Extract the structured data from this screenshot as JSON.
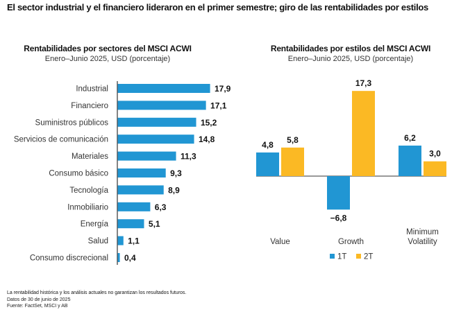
{
  "title": "El sector industrial y el financiero lideraron en el primer semestre; giro de las rentabilidades por estilos",
  "colors": {
    "bar_blue": "#2196d3",
    "bar_yellow": "#fbb924",
    "axis": "#333333"
  },
  "chart_data": [
    {
      "type": "bar",
      "orientation": "horizontal",
      "title": "Rentabilidades por sectores del MSCI ACWI",
      "subtitle": "Enero–Junio 2025, USD (porcentaje)",
      "categories": [
        "Industrial",
        "Financiero",
        "Suministros públicos",
        "Servicios de comunicación",
        "Materiales",
        "Consumo básico",
        "Tecnología",
        "Inmobiliario",
        "Energía",
        "Salud",
        "Consumo discrecional"
      ],
      "values": [
        17.9,
        17.1,
        15.2,
        14.8,
        11.3,
        9.3,
        8.9,
        6.3,
        5.1,
        1.1,
        0.4
      ],
      "labels": [
        "17,9",
        "17,1",
        "15,2",
        "14,8",
        "11,3",
        "9,3",
        "8,9",
        "6,3",
        "5,1",
        "1,1",
        "0,4"
      ],
      "xlabel": "",
      "ylabel": "",
      "xlim": [
        0,
        20
      ],
      "grid": false
    },
    {
      "type": "bar",
      "orientation": "vertical",
      "title": "Rentabilidades por estilos del MSCI ACWI",
      "subtitle": "Enero–Junio 2025, USD (porcentaje)",
      "categories": [
        "Value",
        "Growth",
        "Minimum Volatility"
      ],
      "category_lines": [
        [
          "Value"
        ],
        [
          "Growth"
        ],
        [
          "Minimum",
          "Volatility"
        ]
      ],
      "series": [
        {
          "name": "1T",
          "values": [
            4.8,
            -6.8,
            6.2
          ],
          "labels": [
            "4,8",
            "−6,8",
            "6,2"
          ]
        },
        {
          "name": "2T",
          "values": [
            5.8,
            17.3,
            3.0
          ],
          "labels": [
            "5,8",
            "17,3",
            "3,0"
          ]
        }
      ],
      "xlabel": "",
      "ylabel": "",
      "ylim": [
        -6.8,
        17.3
      ],
      "legend": "bottom-center",
      "grid": false
    }
  ],
  "footer": {
    "disclaimer": "La rentabilidad histórica y los análisis actuales no garantizan los resultados futuros.",
    "date": "Datos de 30 de junio de 2025",
    "source": "Fuente: FactSet, MSCI y AB"
  }
}
